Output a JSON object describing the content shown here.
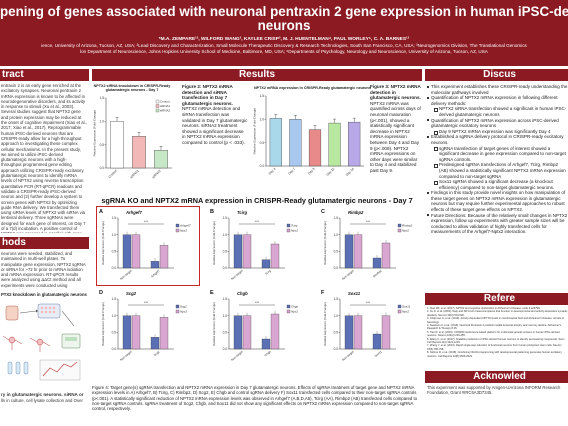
{
  "header": {
    "title_line1": "pening of genes associated with neuronal pentraxin 2 gene expression in human iPSC-derived glutamatergic",
    "title_line2": "neurons",
    "authors": "*M.A. ZEMPARE¹², WILFORD WANG³, KAYLEE CRISP³, M. J. HUENTELMAN⁴, PAUL WORLEY⁵, C. A. BARNES¹²",
    "aff1": "ience, University of Arizona, Tucson, AZ, USA; ²Lead Discovery and Characterization, Small Molecule Therapeutic Discovery & Research Technologies, South San Francisco, CA, USA; ³Neurogenomics Division, The Translational Genomics",
    "aff2": "lon Department of Neuroscience, Johns Hopkins University School of Medicine, Baltimore, MD, USA; ⁶Departments of Psychology, Neurology and Neuroscience, University of Arizona, Tucson, AZ, USA"
  },
  "sections": {
    "abstract": "tract",
    "results": "Results",
    "discussion": "Discus",
    "methods": "hods",
    "references": "Refere",
    "acknowledgements": "Acknowled"
  },
  "abstract_text": "entraxin 2 is an early gene enriched at the excitatory synapses. Neuronal pentraxin 2 mRNA expression is known to be affected in neurodegenerative disorders, and its activity in response to stimuli (Xu et al., 2003). Several studies suggest that NPTX2 gene and protein expression may be reduced at the onset of cognitive impairment (Xiao et al., 2017; Xiao et al., 2017). Reprogrammable human iPSC-derived neurons that are CRISPR-ready allow for a high-throughput approach to investigating these complex cellular mechanisms. In the present study, we aimed to utilize iPSC-derived glutamatergic neurons with a high-throughput programmed gene editing approach utilizing CRISPR-ready excitatory glutamatergic neurons to identify mRNA levels of NPTX2 using reverse transcription quantitative PCR (RT-qPCR) readouts and validate a CRISPR-ready iPSC-derived neuron and (2) further develop a system to screen genes with NPTX2 by optimizing guide RNA delivery. We transfected them using siRNA levels of NPTX2 with siRNA via lentiviral delivery. Three sgRNAs were designed for each gene of interest, on Day 7 of a 7(d) incubation. A positive control of NPTX2 was assessed in parallel with gene-of-interests and showed reduced mRNA of CRISPR workflow. The expressions of cellular genes were downregulated by the pre-designed sgRNAs, without NPTX2 was changed. Findings in this study provide novel insights on how the expression of these target genes on NPTX2 mRNA expression levels and will therefore further experimental approaches to regulate the effects on NPTX2 expression.",
  "methods_text": "neurons were seeded, stabilized, and maintained in multi-well plates. To manipulate gene expression, NPTX2 sgRNA or siRNA for ~72 hr prior to mRNA isolation and mRNA expression. RT-qPCR results were analyzed using ΔΔCt method and all experiments were conducted using commercial reagents.",
  "methods_diagram_title": "PTX2 knockdown in glutamatergic neurons",
  "methods_caption": "ry in glutamatergic neurons. siRNA or",
  "methods_caption2": "lls in culture, cell lysate collection and Over",
  "fig1": {
    "title": "NPTX2 siRNA knockdown in CRISPR-Ready glutamatergic neurons - Day 7",
    "caption_title": "Figure 2: NPTX2 mRNA detection and siRNA transfection in Day 7 glutamatergic neurons.",
    "caption_body": "NPTX2 mRNA detection and siRNA transfection was validated in Day 7 glutamatergic neurons. siRNA2 treatment showed a significant decrease in NPTX2 mRNA expression compared to control (p < .033)."
  },
  "fig2": {
    "title": "NPTX2 mRNA expression in CRISPR-Ready glutamatergic neurons",
    "caption_title": "Figure 3: NPTX2 mRNA detection in glutamatergic neurons.",
    "caption_body": "NPTX2 mRNA was quantified across days of neuronal maturation (p<.001), showed a statistically significant decrease in NPTX2 mRNA expression between Day 4 and Day 9 (p<.009). NPTX2 mRNA expressions on other days were similar to Day 4 and stabilized past Day 9."
  },
  "sgrna_title": "sgRNA KO and NPTX2 mRNA expression in CRISPR-Ready glutamatergic neurons - Day 7",
  "panel_letters": [
    "A",
    "B",
    "C",
    "D",
    "E",
    "F"
  ],
  "panel_genes": [
    "Arhgef7",
    "Tcirg",
    "Rimbp2",
    "Scg2",
    "Chgb",
    "Sox11"
  ],
  "panel_legend": [
    "Arhgef7",
    "Npx2"
  ],
  "ylabel_short": "Relative Expression (Fold-Change)",
  "fig4_caption": "Figure 4: Target gene(s) sgRNA transfection and NPTX2 mRNA expression in Day 7 glutamatergic neurons. Effects of sgRNA treatment of target gene and NPTX2 mRNA expression levels in A) Arhgef7, B) Tcirg, C) Rimbp2, D) Scg2, E) Chgb and control sgRNA delivery F) Sox11 transfected cells compared to their non-target sgRNA controls (p<.001). A statistically significant reduction of NPTX2 mRNA expression levels was observed in Arhgef7 (A,B,D,A5), Tcirg (AA), Rimbp2 (AB) transfected cells compared to non-target sgRNA controls. sgRNA treatment of Scg2, Chgb, and Sox11 did not show any significant effects on NPTX2 mRNA expression compared to non-target sgRNA control, respectively.",
  "discussion": {
    "b1": "This experiment establishes these CRISPR-ready understanding the molecular pathways involved",
    "b2": "Quantification of NPTX2 mRNA expression in following different delivery methods:",
    "b2a": "NPTX2 siRNA transfection showed a significant in human iPSC-derived glutamatergic neurons",
    "b3": "Quantification of NPTX2 mRNA expression across iPSC-derived glutamatergic excitatory neurons",
    "b3a": "Day 9 NPTX2 mRNA expression was significantly Day 4",
    "b4": "Established a sgRNA delivery protocol in CRISPR-ready excitatory neurons.",
    "b4a": "sgRNA transfection of target genes of interest showed a significant decrease in gene expression compared to non-target sgRNA controls.",
    "b4b": "Predesigned sgRNA transfections of Arhgef7, Tcirg, Rimbp2 (AB) showed a statistically significant NPTX2 mRNA expression compared to non-target sgRNA",
    "b4c": "Sox11 sgRNA showed a significant decrease (a knockout efficiency) compared to non-target glutamatergic neurons.",
    "b5": "Findings in this study provide novel insights on how manipulation of these target genes on NPTX2 mRNA expression in glutamatergic neurons but may require further experimental approaches to robust effects of these target gene effects on NPTX2.",
    "b6": "Future Directions: Because of the relatively small changes in NPTX2 expression, follow up experiments with greater sample sizes will be conducted to allow validation of highly transfected cells for measurements of the Arhgef7-Nptx2 interaction."
  },
  "references": [
    "1. Xiao MF, et al. (2017). NPTX2 and cognitive dysfunction in Alzheimer's Disease. eLife 6:e23798.",
    "2. Xu D, et al. (2003). Narp and NP1 form heterocomplexes that function in developmental and activity-dependent synaptic plasticity. Neuron 39(3):513-528.",
    "3. Chapman G, et al. (2019). Activity-dependent NPTX2 levels in cerebrospinal fluid and Alzheimer's Disease. Annals of Neurology.",
    "4. Swanson A, et al. (2016). Neuronal Pentraxin 2 predicts medial temporal atrophy and memory decline. Alzheimer's Research & Therapy 8:15.",
    "5. Tian R, et al. (2019). CRISPR interference-based platform for multimodal genetic screens in human iPSC-derived neurons. Neuron 104(2):239-255.",
    "6. Wang C, et al. (2017). Scalable production of iPSC-derived human neurons to identify tau-lowering compounds. Stem Cell Reports 9(4):1221-1233.",
    "7. Zhang Y, et al. (2013). Rapid single-step induction of functional neurons from human pluripotent stem cells. Neuron 78(5):785-798.",
    "8. Nehme R, et al. (2018). Combining NGN2 programming with developmental patterning generates human excitatory neurons. Cell Reports 23(8):2509-2523."
  ],
  "acknowledgement_text": "This experiment was supported by Amgen-UArizona INFORM Research Foundation, Grant #IRC6A3D7345.",
  "chart_data": [
    {
      "type": "bar",
      "title": "NPTX2 siRNA knockdown in CRISPR-Ready glutamatergic neurons - Day 7",
      "categories": [
        "Control",
        "siRNA1",
        "siRNA2"
      ],
      "values": [
        1.0,
        0.68,
        0.38
      ],
      "ylabel": "Relative Expression (Fold-Change)",
      "ylim": [
        0,
        1.5
      ],
      "yticks": [
        "0.0",
        "0.5",
        "1.0",
        "1.5"
      ],
      "colors": [
        "#ffffff",
        "#f2b8b8",
        "#c6e8c6"
      ],
      "legend": [
        "Control",
        "siRNA1",
        "siRNA2"
      ]
    },
    {
      "type": "bar",
      "title": "NPTX2 mRNA expression in CRISPR-Ready glutamatergic neurons",
      "categories": [
        "Day 4",
        "Day 7",
        "Day 9",
        "Day 11",
        "Day 14"
      ],
      "values": [
        1.02,
        1.0,
        0.78,
        0.92,
        0.94
      ],
      "ylabel": "Relative Expression (Fold-Change)",
      "ylim": [
        0,
        1.5
      ],
      "yticks": [
        "0.0",
        "0.5",
        "1.0",
        "1.5"
      ],
      "colors": [
        "#a8d8ea",
        "#a8c8f0",
        "#e88a8a",
        "#b8e8a0",
        "#b8a8e8"
      ]
    },
    {
      "type": "bar",
      "title": "Arhgef7",
      "categories": [
        "Non-target",
        "Arhgef7"
      ],
      "series": [
        {
          "name": "Arhgef7",
          "values": [
            1.0,
            0.2
          ]
        },
        {
          "name": "Npx2",
          "values": [
            1.0,
            0.68
          ]
        }
      ],
      "ylim": [
        0,
        1.5
      ]
    },
    {
      "type": "bar",
      "title": "Tcirg",
      "categories": [
        "Non-target",
        "Tcirg"
      ],
      "series": [
        {
          "name": "Tcirg",
          "values": [
            1.0,
            0.25
          ]
        },
        {
          "name": "Npx2",
          "values": [
            1.0,
            0.72
          ]
        }
      ],
      "ylim": [
        0,
        1.5
      ]
    },
    {
      "type": "bar",
      "title": "Rimbp2",
      "categories": [
        "Non-target",
        "Rimbp2"
      ],
      "series": [
        {
          "name": "Rimbp2",
          "values": [
            1.0,
            0.3
          ]
        },
        {
          "name": "Npx2",
          "values": [
            1.0,
            0.75
          ]
        }
      ],
      "ylim": [
        0,
        1.5
      ]
    },
    {
      "type": "bar",
      "title": "Scg2",
      "categories": [
        "Non-target",
        "Scg2"
      ],
      "series": [
        {
          "name": "Scg2",
          "values": [
            1.0,
            0.35
          ]
        },
        {
          "name": "Npx2",
          "values": [
            1.0,
            0.95
          ]
        }
      ],
      "ylim": [
        0,
        1.5
      ]
    },
    {
      "type": "bar",
      "title": "Chgb",
      "categories": [
        "Non-target",
        "Chgb"
      ],
      "series": [
        {
          "name": "Chgb",
          "values": [
            1.0,
            0.3
          ]
        },
        {
          "name": "Npx2",
          "values": [
            1.0,
            1.05
          ]
        }
      ],
      "ylim": [
        0,
        1.5
      ]
    },
    {
      "type": "bar",
      "title": "Sox11",
      "categories": [
        "Non-target",
        "Sox11"
      ],
      "series": [
        {
          "name": "Sox11",
          "values": [
            1.0,
            0.45
          ]
        },
        {
          "name": "Npx2",
          "values": [
            1.0,
            1.0
          ]
        }
      ],
      "ylim": [
        0,
        1.5
      ]
    }
  ]
}
